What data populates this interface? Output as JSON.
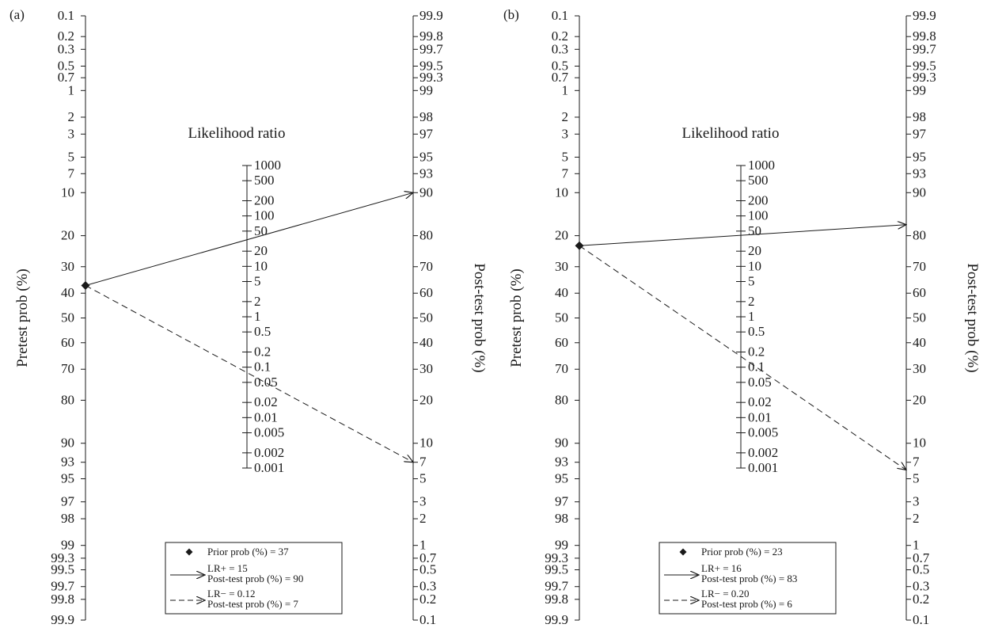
{
  "chart_data": [
    {
      "type": "line",
      "chart_kind": "Fagan nomogram",
      "panel_label": "(a)",
      "left_axis_label": "Pretest prob (%)",
      "middle_axis_label": "Likelihood ratio",
      "right_axis_label": "Post-test prob (%)",
      "left_ticks": [
        "0.1",
        "0.2",
        "0.3",
        "0.5",
        "0.7",
        "1",
        "2",
        "3",
        "5",
        "7",
        "10",
        "20",
        "30",
        "40",
        "50",
        "60",
        "70",
        "80",
        "90",
        "93",
        "95",
        "97",
        "98",
        "99",
        "99.3",
        "99.5",
        "99.7",
        "99.8",
        "99.9"
      ],
      "middle_ticks": [
        "1000",
        "500",
        "200",
        "100",
        "50",
        "20",
        "10",
        "5",
        "2",
        "1",
        "0.5",
        "0.2",
        "0.1",
        "0.05",
        "0.02",
        "0.01",
        "0.005",
        "0.002",
        "0.001"
      ],
      "right_ticks": [
        "99.9",
        "99.8",
        "99.7",
        "99.5",
        "99.3",
        "99",
        "98",
        "97",
        "95",
        "93",
        "90",
        "80",
        "70",
        "60",
        "50",
        "40",
        "30",
        "20",
        "10",
        "7",
        "5",
        "3",
        "2",
        "1",
        "0.7",
        "0.5",
        "0.3",
        "0.2",
        "0.1"
      ],
      "prior_prob": 37,
      "lr_positive": 15,
      "post_prob_positive": 90,
      "lr_negative": 0.12,
      "post_prob_negative": 7,
      "legend": [
        {
          "marker": "diamond",
          "lines": [
            "Prior prob (%) = 37"
          ]
        },
        {
          "marker": "solid-arrow",
          "lines": [
            "LR+ = 15",
            "Post-test prob (%) = 90"
          ]
        },
        {
          "marker": "dashed-arrow",
          "lines": [
            "LR− = 0.12",
            "Post-test prob (%) = 7"
          ]
        }
      ]
    },
    {
      "type": "line",
      "chart_kind": "Fagan nomogram",
      "panel_label": "(b)",
      "left_axis_label": "Pretest prob (%)",
      "middle_axis_label": "Likelihood ratio",
      "right_axis_label": "Post-test prob (%)",
      "left_ticks": [
        "0.1",
        "0.2",
        "0.3",
        "0.5",
        "0.7",
        "1",
        "2",
        "3",
        "5",
        "7",
        "10",
        "20",
        "30",
        "40",
        "50",
        "60",
        "70",
        "80",
        "90",
        "93",
        "95",
        "97",
        "98",
        "99",
        "99.3",
        "99.5",
        "99.7",
        "99.8",
        "99.9"
      ],
      "middle_ticks": [
        "1000",
        "500",
        "200",
        "100",
        "50",
        "20",
        "10",
        "5",
        "2",
        "1",
        "0.5",
        "0.2",
        "0.1",
        "0.05",
        "0.02",
        "0.01",
        "0.005",
        "0.002",
        "0.001"
      ],
      "right_ticks": [
        "99.9",
        "99.8",
        "99.7",
        "99.5",
        "99.3",
        "99",
        "98",
        "97",
        "95",
        "93",
        "90",
        "80",
        "70",
        "60",
        "50",
        "40",
        "30",
        "20",
        "10",
        "7",
        "5",
        "3",
        "2",
        "1",
        "0.7",
        "0.5",
        "0.3",
        "0.2",
        "0.1"
      ],
      "prior_prob": 23,
      "lr_positive": 16,
      "post_prob_positive": 83,
      "lr_negative": 0.2,
      "post_prob_negative": 6,
      "legend": [
        {
          "marker": "diamond",
          "lines": [
            "Prior prob (%) = 23"
          ]
        },
        {
          "marker": "solid-arrow",
          "lines": [
            "LR+ = 16",
            "Post-test prob (%) = 83"
          ]
        },
        {
          "marker": "dashed-arrow",
          "lines": [
            "LR− = 0.20",
            "Post-test prob (%) = 6"
          ]
        }
      ]
    }
  ]
}
